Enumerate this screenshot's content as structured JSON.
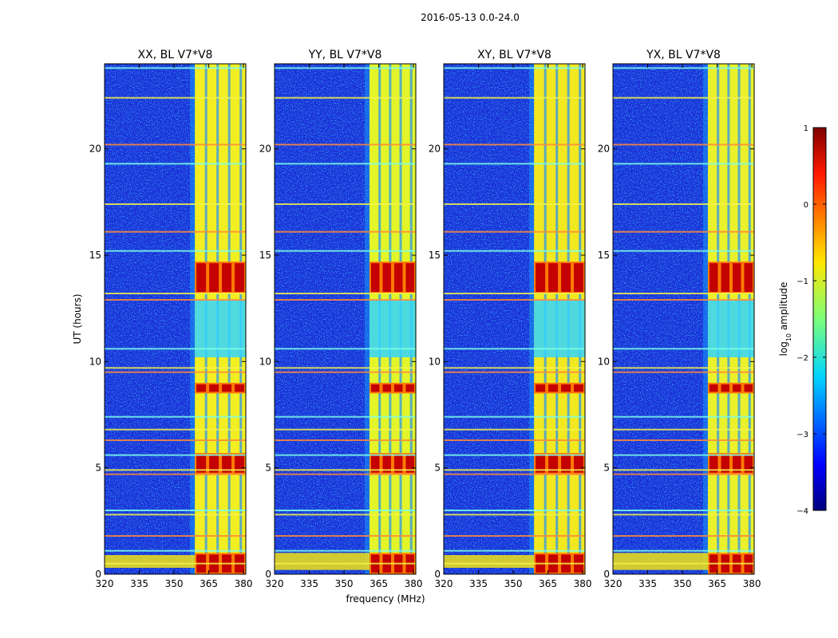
{
  "figure": {
    "suptitle": "2016-05-13 0.0-24.0",
    "xlabel": "frequency (MHz)",
    "ylabel": "UT (hours)",
    "colorbar_label_prefix": "log",
    "colorbar_label_sub": "10",
    "colorbar_label_suffix": " amplitude"
  },
  "chart_data": {
    "type": "heatmap",
    "title": "2016-05-13 0.0-24.0",
    "xlabel": "frequency (MHz)",
    "ylabel": "UT (hours)",
    "xlim": [
      320,
      381
    ],
    "ylim": [
      0,
      24
    ],
    "xticks": [
      320,
      335,
      350,
      365,
      380
    ],
    "yticks": [
      0,
      5,
      10,
      15,
      20
    ],
    "colorbar": {
      "label": "log10 amplitude",
      "range": [
        -4,
        1
      ],
      "ticks": [
        "1",
        "0",
        "−1",
        "−2",
        "−3",
        "−4"
      ],
      "colormap": "jet"
    },
    "panels": [
      {
        "title": "XX, BL V7*V8",
        "pol": "XX",
        "baseline": "V7*V8",
        "band_mhz": [
          359,
          370,
          381
        ],
        "band_color": "#f3ee22",
        "low_emission": [
          0.3,
          0.9
        ]
      },
      {
        "title": "YY, BL V7*V8",
        "pol": "YY",
        "baseline": "V7*V8",
        "band_mhz": [
          361,
          372,
          381
        ],
        "band_color": "#e3f528",
        "low_emission": [
          0.2,
          1.0
        ]
      },
      {
        "title": "XY, BL V7*V8",
        "pol": "XY",
        "baseline": "V7*V8",
        "band_mhz": [
          359,
          370,
          381
        ],
        "band_color": "#f2e820",
        "low_emission": [
          0.3,
          0.9
        ]
      },
      {
        "title": "YX, BL V7*V8",
        "pol": "YX",
        "baseline": "V7*V8",
        "band_mhz": [
          361,
          372,
          381
        ],
        "band_color": "#eaf02a",
        "low_emission": [
          0.2,
          1.0
        ]
      }
    ],
    "approx_values": {
      "background_log10_amp": -3.2,
      "band_log10_amp": -1.0,
      "hot_spots_log10_amp": 0.5,
      "hot_time_ranges_ut": [
        [
          0.0,
          1.0
        ],
        [
          13.2,
          14.7
        ],
        [
          8.5,
          9.0
        ],
        [
          4.7,
          5.7
        ]
      ],
      "cool_time_ranges_ut": [
        [
          10.2,
          12.9
        ]
      ],
      "rfi_lines_ut": [
        0.5,
        1.1,
        1.8,
        2.8,
        3.0,
        4.7,
        4.9,
        5.6,
        6.3,
        6.8,
        7.4,
        9.5,
        9.7,
        10.6,
        12.9,
        13.2,
        15.2,
        16.1,
        17.4,
        19.3,
        20.2,
        22.4,
        23.8
      ]
    }
  }
}
